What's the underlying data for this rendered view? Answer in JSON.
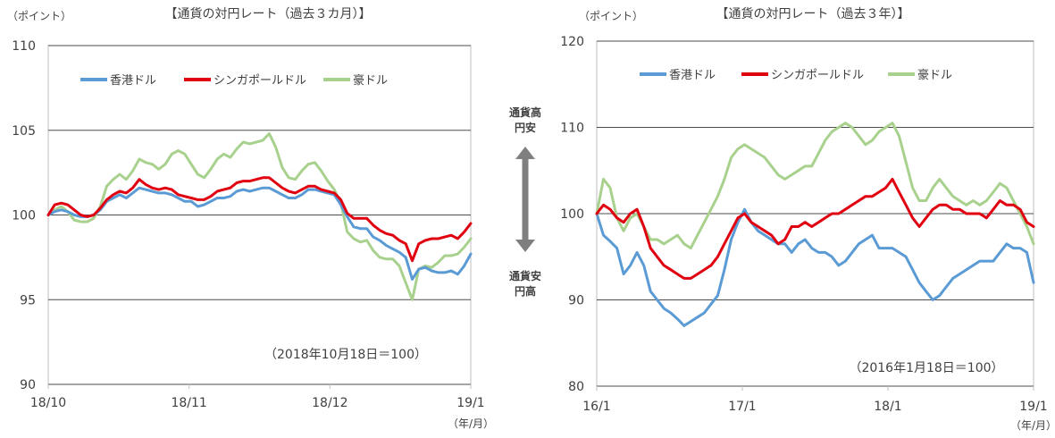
{
  "colors": {
    "hkd": "#5b9bd5",
    "sgd": "#e00010",
    "aud": "#a9d18e",
    "grid": "#4d4d4d",
    "text": "#404040"
  },
  "middle": {
    "top": "通貨高\n円安",
    "bottom": "通貨安\n円高"
  },
  "chart_data": [
    {
      "type": "line",
      "title": "【通貨の対円レート（過去３カ月）】",
      "ylabel": "（ポイント）",
      "xunit": "（年/月）",
      "note": "（2018年10月18日＝100）",
      "ylim": [
        90,
        110
      ],
      "yticks": [
        "110",
        "105",
        "100",
        "95",
        "90"
      ],
      "xticks": [
        "18/10",
        "18/11",
        "18/12",
        "19/1"
      ],
      "legend_position": "top-left",
      "grid": true,
      "series": [
        {
          "name": "香港ドル",
          "values": [
            100.0,
            100.2,
            100.3,
            100.2,
            100.0,
            99.9,
            99.9,
            100.0,
            100.3,
            100.8,
            101.0,
            101.2,
            101.0,
            101.3,
            101.6,
            101.5,
            101.4,
            101.3,
            101.3,
            101.2,
            101.0,
            100.8,
            100.8,
            100.5,
            100.6,
            100.8,
            101.0,
            101.0,
            101.1,
            101.4,
            101.5,
            101.4,
            101.5,
            101.6,
            101.6,
            101.4,
            101.2,
            101.0,
            101.0,
            101.2,
            101.5,
            101.5,
            101.4,
            101.3,
            101.2,
            100.6,
            99.9,
            99.3,
            99.2,
            99.2,
            98.7,
            98.5,
            98.2,
            98.0,
            97.8,
            97.5,
            96.2,
            96.8,
            96.9,
            96.7,
            96.6,
            96.6,
            96.7,
            96.5,
            97.0,
            97.7
          ]
        },
        {
          "name": "シンガポールドル",
          "values": [
            100.0,
            100.6,
            100.7,
            100.6,
            100.3,
            100.0,
            99.9,
            100.0,
            100.4,
            100.9,
            101.2,
            101.4,
            101.3,
            101.6,
            102.1,
            101.8,
            101.6,
            101.5,
            101.6,
            101.5,
            101.2,
            101.1,
            101.0,
            100.9,
            100.9,
            101.1,
            101.4,
            101.5,
            101.6,
            101.9,
            102.0,
            102.0,
            102.1,
            102.2,
            102.2,
            101.9,
            101.6,
            101.4,
            101.3,
            101.5,
            101.7,
            101.7,
            101.5,
            101.4,
            101.3,
            100.9,
            100.1,
            99.8,
            99.8,
            99.8,
            99.4,
            99.1,
            98.9,
            98.8,
            98.5,
            98.3,
            97.3,
            98.3,
            98.5,
            98.6,
            98.6,
            98.7,
            98.8,
            98.6,
            99.0,
            99.5
          ]
        },
        {
          "name": "豪ドル",
          "values": [
            100.0,
            100.3,
            100.5,
            100.2,
            99.7,
            99.6,
            99.6,
            99.8,
            100.5,
            101.7,
            102.1,
            102.4,
            102.1,
            102.6,
            103.3,
            103.1,
            103.0,
            102.7,
            103.0,
            103.6,
            103.8,
            103.6,
            103.0,
            102.4,
            102.2,
            102.7,
            103.3,
            103.6,
            103.4,
            103.9,
            104.3,
            104.2,
            104.3,
            104.4,
            104.8,
            104.0,
            102.8,
            102.2,
            102.1,
            102.6,
            103.0,
            103.1,
            102.6,
            102.0,
            101.5,
            100.7,
            99.0,
            98.6,
            98.4,
            98.5,
            97.9,
            97.5,
            97.4,
            97.4,
            97.0,
            96.0,
            95.0,
            96.8,
            97.0,
            96.9,
            97.2,
            97.6,
            97.6,
            97.7,
            98.1,
            98.6
          ]
        }
      ]
    },
    {
      "type": "line",
      "title": "【通貨の対円レート（過去３年）】",
      "ylabel": "（ポイント）",
      "xunit": "（年/月）",
      "note": "（2016年1月18日＝100）",
      "ylim": [
        80,
        120
      ],
      "yticks": [
        "120",
        "110",
        "100",
        "90",
        "80"
      ],
      "xticks": [
        "16/1",
        "17/1",
        "18/1",
        "19/1"
      ],
      "legend_position": "top-left",
      "grid": true,
      "series": [
        {
          "name": "香港ドル",
          "values": [
            100.0,
            97.5,
            96.8,
            96.0,
            93.0,
            94.0,
            95.5,
            94.0,
            91.0,
            90.0,
            89.0,
            88.5,
            87.8,
            87.0,
            87.5,
            88.0,
            88.5,
            89.5,
            90.5,
            93.5,
            97.0,
            99.0,
            100.5,
            99.0,
            98.0,
            97.5,
            97.0,
            96.5,
            96.5,
            95.5,
            96.5,
            97.0,
            96.0,
            95.5,
            95.5,
            95.0,
            94.0,
            94.5,
            95.5,
            96.5,
            97.0,
            97.5,
            96.0,
            96.0,
            96.0,
            95.5,
            95.0,
            93.5,
            92.0,
            91.0,
            90.0,
            90.5,
            91.5,
            92.5,
            93.0,
            93.5,
            94.0,
            94.5,
            94.5,
            94.5,
            95.5,
            96.5,
            96.0,
            96.0,
            95.5,
            92.0
          ]
        },
        {
          "name": "シンガポールドル",
          "values": [
            100.0,
            101.0,
            100.5,
            99.5,
            99.0,
            100.0,
            100.5,
            98.5,
            96.0,
            95.0,
            94.0,
            93.5,
            93.0,
            92.5,
            92.5,
            93.0,
            93.5,
            94.0,
            95.0,
            96.5,
            98.0,
            99.5,
            100.0,
            99.0,
            98.5,
            98.0,
            97.5,
            96.5,
            97.0,
            98.5,
            98.5,
            99.0,
            98.5,
            99.0,
            99.5,
            100.0,
            100.0,
            100.5,
            101.0,
            101.5,
            102.0,
            102.0,
            102.5,
            103.0,
            104.0,
            102.5,
            101.0,
            99.5,
            98.5,
            99.5,
            100.5,
            101.0,
            101.0,
            100.5,
            100.5,
            100.0,
            100.0,
            100.0,
            99.5,
            100.5,
            101.5,
            101.0,
            101.0,
            100.5,
            99.0,
            98.5
          ]
        },
        {
          "name": "豪ドル",
          "values": [
            100.0,
            104.0,
            103.0,
            99.5,
            98.0,
            99.5,
            100.0,
            98.5,
            97.0,
            97.0,
            96.5,
            97.0,
            97.5,
            96.5,
            96.0,
            97.5,
            99.0,
            100.5,
            102.0,
            104.0,
            106.5,
            107.5,
            108.0,
            107.5,
            107.0,
            106.5,
            105.5,
            104.5,
            104.0,
            104.5,
            105.0,
            105.5,
            105.5,
            107.0,
            108.5,
            109.5,
            110.0,
            110.5,
            110.0,
            109.0,
            108.0,
            108.5,
            109.5,
            110.0,
            110.5,
            109.0,
            106.0,
            103.0,
            101.5,
            101.5,
            103.0,
            104.0,
            103.0,
            102.0,
            101.5,
            101.0,
            101.5,
            101.0,
            101.5,
            102.5,
            103.5,
            103.0,
            101.5,
            100.0,
            98.5,
            96.5
          ]
        }
      ]
    }
  ]
}
